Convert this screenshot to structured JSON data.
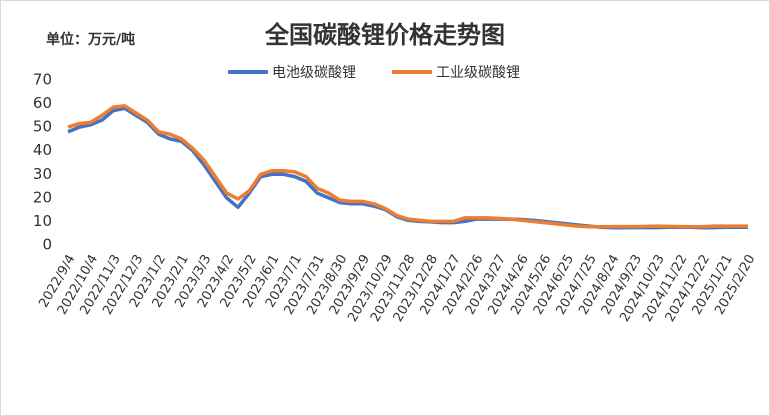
{
  "chart_data": {
    "type": "line",
    "title": "全国碳酸锂价格走势图",
    "unit_label": "单位：万元/吨",
    "categories": [
      "2022/9/4",
      null,
      "2022/10/4",
      null,
      "2022/11/3",
      null,
      "2022/12/3",
      null,
      "2023/1/2",
      null,
      "2023/2/1",
      null,
      "2023/3/3",
      null,
      "2023/4/2",
      null,
      "2023/5/2",
      null,
      "2023/6/1",
      null,
      "2023/7/1",
      null,
      "2023/7/31",
      null,
      "2023/8/30",
      null,
      "2023/9/29",
      null,
      "2023/10/29",
      null,
      "2023/11/28",
      null,
      "2023/12/28",
      null,
      "2024/1/27",
      null,
      "2024/2/26",
      null,
      "2024/3/27",
      null,
      "2024/4/26",
      null,
      "2024/5/26",
      null,
      "2024/6/25",
      null,
      "2024/7/25",
      null,
      "2024/8/24",
      null,
      "2024/9/23",
      null,
      "2024/10/23",
      null,
      "2024/11/22",
      null,
      "2024/12/22",
      null,
      "2025/1/21",
      null,
      "2025/2/20"
    ],
    "series": [
      {
        "name": "电池级碳酸锂",
        "color": "#4472c4",
        "values": [
          48,
          50,
          51,
          53,
          57,
          58,
          55,
          52,
          47,
          45,
          44,
          40,
          34,
          27,
          20,
          16,
          22,
          29,
          30,
          30,
          29,
          27,
          22,
          20,
          18,
          17.5,
          17.5,
          16.5,
          15,
          12,
          10.5,
          10,
          9.8,
          9.5,
          9.5,
          10,
          11,
          11,
          11,
          11,
          10.8,
          10.5,
          10,
          9.5,
          9,
          8.5,
          8,
          7.5,
          7.3,
          7.3,
          7.4,
          7.4,
          7.4,
          7.5,
          7.6,
          7.5,
          7.3,
          7.4,
          7.5,
          7.5,
          7.5
        ]
      },
      {
        "name": "工业级碳酸锂",
        "color": "#ed7d31",
        "values": [
          50,
          51.5,
          52,
          55,
          58.5,
          59,
          56,
          53,
          48,
          47,
          45,
          41,
          36,
          29,
          22,
          19.5,
          23,
          30,
          31.5,
          31.5,
          31,
          29,
          24,
          22,
          19,
          18.5,
          18.5,
          17.5,
          15.5,
          12.5,
          11,
          10.5,
          10,
          10,
          10,
          11.5,
          11.5,
          11.5,
          11.3,
          11,
          10.5,
          10,
          9.5,
          9,
          8.5,
          8,
          7.7,
          7.7,
          7.8,
          7.8,
          7.8,
          7.9,
          8,
          7.9,
          7.8,
          7.7,
          7.8,
          8,
          8,
          8,
          8
        ]
      }
    ],
    "ylim": [
      0,
      70
    ],
    "yticks": [
      0,
      10,
      20,
      30,
      40,
      50,
      60,
      70
    ],
    "grid": false
  }
}
